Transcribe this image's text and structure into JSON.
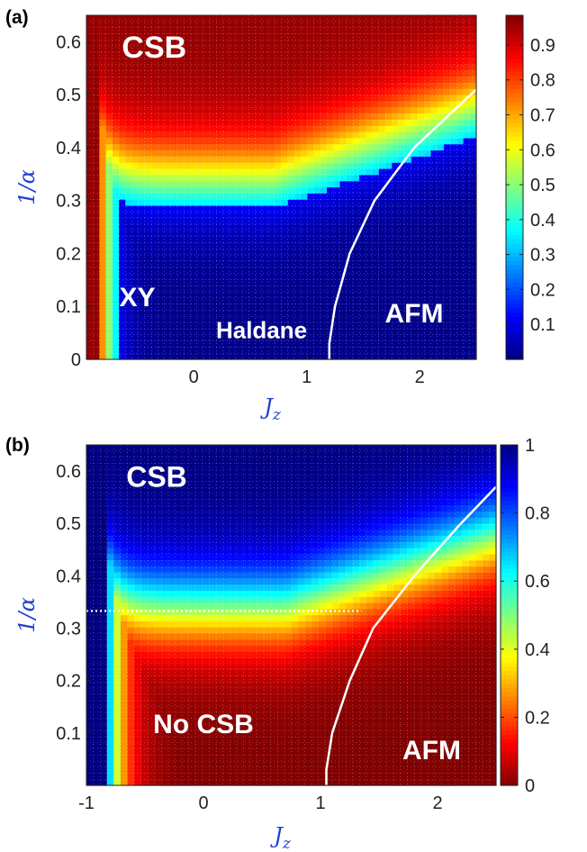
{
  "chart_data": [
    {
      "type": "heatmap",
      "panel_label": "(a)",
      "xlabel": "J_z",
      "ylabel": "1/α",
      "xlim": [
        -0.95,
        2.5
      ],
      "ylim": [
        0,
        0.65
      ],
      "x_ticks": [
        "0",
        "1",
        "2"
      ],
      "y_ticks": [
        "0",
        "0.1",
        "0.2",
        "0.3",
        "0.4",
        "0.5",
        "0.6"
      ],
      "colorbar_range": [
        0,
        1
      ],
      "colorbar_ticks": [
        "0.1",
        "0.2",
        "0.3",
        "0.4",
        "0.5",
        "0.6",
        "0.7",
        "0.8",
        "0.9"
      ],
      "colormap": "jet",
      "grid": true,
      "regions": [
        {
          "label": "CSB",
          "x": -0.35,
          "y": 0.57
        },
        {
          "label": "XY",
          "x": -0.5,
          "y": 0.1
        },
        {
          "label": "Haldane",
          "x": 0.6,
          "y": 0.04
        },
        {
          "label": "AFM",
          "x": 1.95,
          "y": 0.07
        }
      ],
      "boundary": [
        [
          1.2,
          0
        ],
        [
          1.2,
          0.03
        ],
        [
          1.25,
          0.1
        ],
        [
          1.38,
          0.2
        ],
        [
          1.6,
          0.3
        ],
        [
          1.95,
          0.4
        ],
        [
          2.3,
          0.47
        ],
        [
          2.5,
          0.51
        ]
      ],
      "dotted_line": null
    },
    {
      "type": "heatmap",
      "panel_label": "(b)",
      "xlabel": "J_z",
      "ylabel": "1/α",
      "xlim": [
        -1,
        2.5
      ],
      "ylim": [
        0,
        0.65
      ],
      "x_ticks": [
        "-1",
        "0",
        "1",
        "2"
      ],
      "y_ticks": [
        "0.1",
        "0.2",
        "0.3",
        "0.4",
        "0.5",
        "0.6"
      ],
      "colorbar_range": [
        0,
        1
      ],
      "colorbar_ticks": [
        "0",
        "0.2",
        "0.4",
        "0.6",
        "0.8",
        "1"
      ],
      "colormap": "jet_reversed",
      "grid": true,
      "regions": [
        {
          "label": "CSB",
          "x": -0.4,
          "y": 0.57
        },
        {
          "label": "No CSB",
          "x": 0.0,
          "y": 0.1
        },
        {
          "label": "AFM",
          "x": 1.95,
          "y": 0.05
        }
      ],
      "boundary": [
        [
          1.05,
          0
        ],
        [
          1.05,
          0.03
        ],
        [
          1.1,
          0.1
        ],
        [
          1.25,
          0.2
        ],
        [
          1.45,
          0.3
        ],
        [
          1.8,
          0.4
        ],
        [
          2.2,
          0.5
        ],
        [
          2.5,
          0.57
        ]
      ],
      "dotted_line": {
        "y": 0.333,
        "x_from": -1,
        "x_to": 1.35
      }
    }
  ]
}
